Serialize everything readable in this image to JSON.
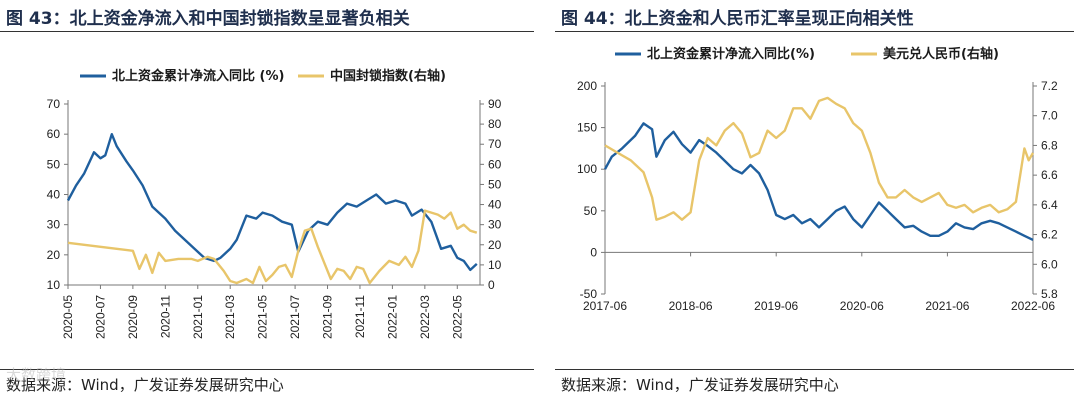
{
  "figures": [
    {
      "title": "图 43：北上资金净流入和中国封锁指数呈显著负相关",
      "source": "数据来源：Wind，广发证券发展研究中心",
      "chart_data": {
        "type": "line",
        "title": "",
        "xlabel": "",
        "ylabel": "",
        "x_tick_labels": [
          "2020-05",
          "2020-07",
          "2020-09",
          "2020-11",
          "2021-01",
          "2021-03",
          "2021-05",
          "2021-07",
          "2021-09",
          "2021-11",
          "2022-01",
          "2022-03",
          "2022-05"
        ],
        "x_range": [
          0,
          12.7
        ],
        "y_left": {
          "range": [
            10,
            70
          ],
          "ticks": [
            10,
            20,
            30,
            40,
            50,
            60,
            70
          ]
        },
        "y_right": {
          "range": [
            0,
            90
          ],
          "ticks": [
            0,
            10,
            20,
            30,
            40,
            50,
            60,
            70,
            80,
            90
          ]
        },
        "legend_position": "top",
        "grid": false,
        "series": [
          {
            "name": "北上资金累计净流入同比 (%)",
            "axis": "left",
            "color": "#1f5f9e",
            "x": [
              0,
              0.25,
              0.5,
              0.8,
              1.0,
              1.15,
              1.35,
              1.5,
              1.8,
              2.0,
              2.3,
              2.6,
              3.0,
              3.3,
              3.6,
              3.9,
              4.2,
              4.5,
              4.7,
              5.0,
              5.2,
              5.5,
              5.8,
              6.0,
              6.3,
              6.6,
              6.9,
              7.1,
              7.4,
              7.7,
              8.0,
              8.3,
              8.6,
              8.9,
              9.2,
              9.5,
              9.8,
              10.1,
              10.4,
              10.6,
              10.9,
              11.2,
              11.5,
              11.8,
              12.0,
              12.2,
              12.4,
              12.6
            ],
            "y": [
              38,
              43,
              47,
              54,
              52,
              53,
              60,
              56,
              51,
              48,
              43,
              36,
              32,
              28,
              25,
              22,
              19,
              18,
              19,
              22,
              25,
              33,
              32,
              34,
              33,
              31,
              30,
              21,
              28,
              31,
              30,
              34,
              37,
              36,
              38,
              40,
              37,
              38,
              37,
              33,
              35,
              31,
              22,
              23,
              19,
              18,
              15,
              17
            ]
          },
          {
            "name": "中国封锁指数(右轴)",
            "axis": "right",
            "color": "#e8c56a",
            "x": [
              0,
              0.5,
              1.0,
              1.5,
              2.0,
              2.2,
              2.4,
              2.6,
              2.8,
              3.0,
              3.4,
              3.8,
              4.0,
              4.3,
              4.5,
              4.8,
              5.0,
              5.2,
              5.5,
              5.7,
              5.9,
              6.1,
              6.3,
              6.5,
              6.7,
              6.9,
              7.1,
              7.3,
              7.5,
              7.7,
              7.9,
              8.1,
              8.3,
              8.5,
              8.7,
              8.9,
              9.1,
              9.3,
              9.6,
              9.9,
              10.2,
              10.4,
              10.6,
              10.8,
              11.0,
              11.2,
              11.4,
              11.6,
              11.8,
              12.0,
              12.2,
              12.4,
              12.6
            ],
            "y": [
              21,
              20,
              19,
              18,
              17,
              8,
              15,
              6,
              16,
              12,
              13,
              13,
              12,
              14,
              13,
              7,
              2,
              1,
              3,
              1,
              9,
              2,
              5,
              9,
              10,
              4,
              17,
              27,
              28,
              19,
              11,
              3,
              8,
              7,
              3,
              9,
              8,
              1,
              7,
              12,
              10,
              14,
              9,
              17,
              37,
              36,
              35,
              33,
              36,
              28,
              30,
              27,
              26
            ]
          }
        ]
      }
    },
    {
      "title": "图 44：北上资金和人民币汇率呈现正向相关性",
      "source": "数据来源：Wind，广发证券发展研究中心",
      "chart_data": {
        "type": "line",
        "title": "",
        "xlabel": "",
        "ylabel": "",
        "x_tick_labels": [
          "2017-06",
          "2018-06",
          "2019-06",
          "2020-06",
          "2021-06",
          "2022-06"
        ],
        "x_range": [
          0,
          5.0
        ],
        "y_left": {
          "range": [
            -50,
            200
          ],
          "ticks": [
            -50,
            0,
            50,
            100,
            150,
            200
          ]
        },
        "y_right": {
          "range": [
            5.8,
            7.2
          ],
          "ticks": [
            5.8,
            6.0,
            6.2,
            6.4,
            6.6,
            6.8,
            7.0,
            7.2
          ]
        },
        "legend_position": "top",
        "grid": false,
        "series": [
          {
            "name": "北上资金累计净流入同比(%)",
            "axis": "left",
            "color": "#1f5f9e",
            "x": [
              0,
              0.08,
              0.2,
              0.35,
              0.45,
              0.55,
              0.6,
              0.7,
              0.8,
              0.9,
              1.0,
              1.1,
              1.2,
              1.3,
              1.4,
              1.5,
              1.6,
              1.7,
              1.8,
              1.9,
              2.0,
              2.1,
              2.2,
              2.3,
              2.4,
              2.5,
              2.6,
              2.7,
              2.8,
              2.9,
              3.0,
              3.1,
              3.2,
              3.3,
              3.4,
              3.5,
              3.6,
              3.7,
              3.8,
              3.9,
              4.0,
              4.1,
              4.2,
              4.3,
              4.4,
              4.5,
              4.6,
              4.7,
              4.8,
              4.9,
              5.0
            ],
            "y": [
              100,
              115,
              125,
              140,
              155,
              148,
              115,
              135,
              145,
              130,
              120,
              135,
              128,
              120,
              110,
              100,
              95,
              105,
              95,
              75,
              45,
              40,
              45,
              35,
              40,
              30,
              40,
              50,
              55,
              40,
              30,
              45,
              60,
              50,
              40,
              30,
              32,
              25,
              20,
              20,
              25,
              35,
              30,
              28,
              35,
              38,
              35,
              30,
              25,
              20,
              15
            ]
          },
          {
            "name": "美元兑人民币(右轴)",
            "axis": "right",
            "color": "#e8c56a",
            "x": [
              0,
              0.15,
              0.3,
              0.45,
              0.55,
              0.6,
              0.7,
              0.8,
              0.9,
              1.0,
              1.1,
              1.2,
              1.3,
              1.4,
              1.5,
              1.6,
              1.7,
              1.8,
              1.9,
              2.0,
              2.1,
              2.2,
              2.3,
              2.4,
              2.5,
              2.6,
              2.7,
              2.8,
              2.9,
              3.0,
              3.1,
              3.2,
              3.3,
              3.4,
              3.5,
              3.6,
              3.7,
              3.8,
              3.9,
              4.0,
              4.1,
              4.2,
              4.3,
              4.4,
              4.5,
              4.6,
              4.7,
              4.8,
              4.85,
              4.9,
              4.95,
              5.0
            ],
            "y": [
              6.8,
              6.75,
              6.7,
              6.62,
              6.45,
              6.3,
              6.32,
              6.35,
              6.3,
              6.35,
              6.7,
              6.85,
              6.8,
              6.9,
              6.95,
              6.88,
              6.72,
              6.75,
              6.9,
              6.85,
              6.9,
              7.05,
              7.05,
              6.98,
              7.1,
              7.12,
              7.08,
              7.05,
              6.95,
              6.9,
              6.75,
              6.55,
              6.45,
              6.45,
              6.5,
              6.45,
              6.42,
              6.45,
              6.48,
              6.4,
              6.38,
              6.4,
              6.35,
              6.38,
              6.4,
              6.35,
              6.37,
              6.42,
              6.6,
              6.78,
              6.7,
              6.75
            ]
          }
        ]
      }
    }
  ],
  "watermark": "大数跨境"
}
